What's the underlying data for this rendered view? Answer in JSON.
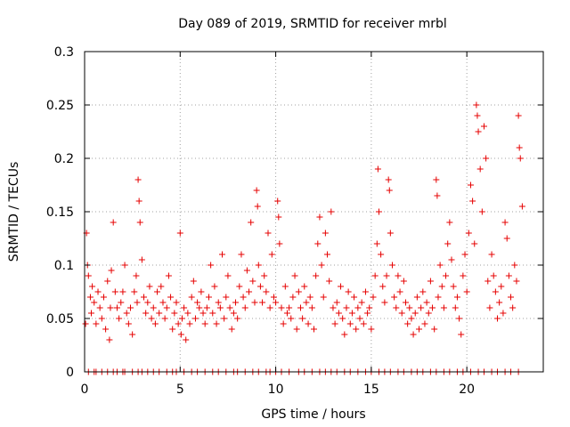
{
  "chart_data": {
    "type": "scatter",
    "title": "Day 089 of 2019, SRMTID for receiver mrbl",
    "xlabel": "GPS time / hours",
    "ylabel": "SRMTID / TECUs",
    "xlim": [
      0,
      24.0
    ],
    "ylim": [
      0,
      0.3
    ],
    "x_ticks": [
      0,
      5,
      10,
      15,
      20
    ],
    "x_tick_labels": [
      "0",
      "5",
      "10",
      "15",
      "20"
    ],
    "y_ticks": [
      0,
      0.05,
      0.1,
      0.15,
      0.2,
      0.25,
      0.3
    ],
    "y_tick_labels": [
      "0",
      "0.05",
      "0.1",
      "0.15",
      "0.2",
      "0.25",
      "0.3"
    ],
    "grid": true,
    "marker": "plus",
    "color": "#e60000",
    "series": [
      {
        "name": "SRMTID",
        "points": [
          [
            0.05,
            0.045
          ],
          [
            0.1,
            0.13
          ],
          [
            0.15,
            0.1
          ],
          [
            0.2,
            0.09
          ],
          [
            0.3,
            0.07
          ],
          [
            0.35,
            0.055
          ],
          [
            0.4,
            0.08
          ],
          [
            0.5,
            0.065
          ],
          [
            0.6,
            0.045
          ],
          [
            0.7,
            0.075
          ],
          [
            0.8,
            0.06
          ],
          [
            0.9,
            0.05
          ],
          [
            1.0,
            0.07
          ],
          [
            1.1,
            0.04
          ],
          [
            1.2,
            0.085
          ],
          [
            1.3,
            0.03
          ],
          [
            1.35,
            0.06
          ],
          [
            1.4,
            0.095
          ],
          [
            1.5,
            0.14
          ],
          [
            1.6,
            0.075
          ],
          [
            1.7,
            0.06
          ],
          [
            1.8,
            0.05
          ],
          [
            1.9,
            0.065
          ],
          [
            2.0,
            0.075
          ],
          [
            2.1,
            0.1
          ],
          [
            2.2,
            0.055
          ],
          [
            2.3,
            0.045
          ],
          [
            2.4,
            0.06
          ],
          [
            2.5,
            0.035
          ],
          [
            2.6,
            0.075
          ],
          [
            2.7,
            0.09
          ],
          [
            2.75,
            0.065
          ],
          [
            2.8,
            0.18
          ],
          [
            2.85,
            0.16
          ],
          [
            2.9,
            0.14
          ],
          [
            3.0,
            0.105
          ],
          [
            3.1,
            0.07
          ],
          [
            3.2,
            0.055
          ],
          [
            3.3,
            0.065
          ],
          [
            3.4,
            0.08
          ],
          [
            3.5,
            0.05
          ],
          [
            3.6,
            0.06
          ],
          [
            3.7,
            0.045
          ],
          [
            3.8,
            0.075
          ],
          [
            3.9,
            0.055
          ],
          [
            4.0,
            0.08
          ],
          [
            4.1,
            0.065
          ],
          [
            4.2,
            0.05
          ],
          [
            4.3,
            0.06
          ],
          [
            4.4,
            0.09
          ],
          [
            4.5,
            0.07
          ],
          [
            4.6,
            0.04
          ],
          [
            4.7,
            0.055
          ],
          [
            4.8,
            0.065
          ],
          [
            4.9,
            0.045
          ],
          [
            5.0,
            0.13
          ],
          [
            5.05,
            0.035
          ],
          [
            5.1,
            0.05
          ],
          [
            5.2,
            0.06
          ],
          [
            5.3,
            0.03
          ],
          [
            5.4,
            0.055
          ],
          [
            5.5,
            0.045
          ],
          [
            5.6,
            0.07
          ],
          [
            5.7,
            0.085
          ],
          [
            5.8,
            0.05
          ],
          [
            5.9,
            0.065
          ],
          [
            6.0,
            0.06
          ],
          [
            6.1,
            0.075
          ],
          [
            6.2,
            0.055
          ],
          [
            6.3,
            0.045
          ],
          [
            6.4,
            0.06
          ],
          [
            6.5,
            0.07
          ],
          [
            6.6,
            0.1
          ],
          [
            6.7,
            0.055
          ],
          [
            6.8,
            0.08
          ],
          [
            6.9,
            0.045
          ],
          [
            7.0,
            0.065
          ],
          [
            7.1,
            0.06
          ],
          [
            7.2,
            0.11
          ],
          [
            7.3,
            0.05
          ],
          [
            7.4,
            0.07
          ],
          [
            7.5,
            0.09
          ],
          [
            7.6,
            0.06
          ],
          [
            7.7,
            0.04
          ],
          [
            7.8,
            0.055
          ],
          [
            7.9,
            0.065
          ],
          [
            8.0,
            0.05
          ],
          [
            8.1,
            0.08
          ],
          [
            8.2,
            0.11
          ],
          [
            8.3,
            0.07
          ],
          [
            8.4,
            0.06
          ],
          [
            8.5,
            0.095
          ],
          [
            8.6,
            0.075
          ],
          [
            8.7,
            0.14
          ],
          [
            8.8,
            0.085
          ],
          [
            8.9,
            0.065
          ],
          [
            9.0,
            0.17
          ],
          [
            9.05,
            0.155
          ],
          [
            9.1,
            0.1
          ],
          [
            9.2,
            0.08
          ],
          [
            9.3,
            0.065
          ],
          [
            9.4,
            0.09
          ],
          [
            9.5,
            0.075
          ],
          [
            9.6,
            0.13
          ],
          [
            9.7,
            0.06
          ],
          [
            9.8,
            0.11
          ],
          [
            9.9,
            0.07
          ],
          [
            10.0,
            0.065
          ],
          [
            10.1,
            0.16
          ],
          [
            10.15,
            0.145
          ],
          [
            10.2,
            0.12
          ],
          [
            10.3,
            0.06
          ],
          [
            10.4,
            0.045
          ],
          [
            10.5,
            0.08
          ],
          [
            10.6,
            0.055
          ],
          [
            10.7,
            0.06
          ],
          [
            10.8,
            0.05
          ],
          [
            10.9,
            0.07
          ],
          [
            11.0,
            0.09
          ],
          [
            11.1,
            0.04
          ],
          [
            11.2,
            0.075
          ],
          [
            11.3,
            0.06
          ],
          [
            11.4,
            0.05
          ],
          [
            11.5,
            0.08
          ],
          [
            11.6,
            0.065
          ],
          [
            11.7,
            0.045
          ],
          [
            11.8,
            0.07
          ],
          [
            11.9,
            0.06
          ],
          [
            12.0,
            0.04
          ],
          [
            12.1,
            0.09
          ],
          [
            12.2,
            0.12
          ],
          [
            12.3,
            0.145
          ],
          [
            12.4,
            0.1
          ],
          [
            12.5,
            0.07
          ],
          [
            12.6,
            0.13
          ],
          [
            12.7,
            0.11
          ],
          [
            12.8,
            0.085
          ],
          [
            12.9,
            0.15
          ],
          [
            13.0,
            0.06
          ],
          [
            13.1,
            0.045
          ],
          [
            13.2,
            0.065
          ],
          [
            13.3,
            0.055
          ],
          [
            13.4,
            0.08
          ],
          [
            13.5,
            0.05
          ],
          [
            13.6,
            0.035
          ],
          [
            13.7,
            0.06
          ],
          [
            13.8,
            0.075
          ],
          [
            13.9,
            0.045
          ],
          [
            14.0,
            0.055
          ],
          [
            14.1,
            0.07
          ],
          [
            14.2,
            0.04
          ],
          [
            14.3,
            0.06
          ],
          [
            14.4,
            0.05
          ],
          [
            14.5,
            0.065
          ],
          [
            14.6,
            0.045
          ],
          [
            14.7,
            0.075
          ],
          [
            14.8,
            0.055
          ],
          [
            14.9,
            0.06
          ],
          [
            15.0,
            0.04
          ],
          [
            15.1,
            0.07
          ],
          [
            15.2,
            0.09
          ],
          [
            15.3,
            0.12
          ],
          [
            15.35,
            0.19
          ],
          [
            15.4,
            0.15
          ],
          [
            15.5,
            0.11
          ],
          [
            15.6,
            0.08
          ],
          [
            15.7,
            0.065
          ],
          [
            15.8,
            0.09
          ],
          [
            15.9,
            0.18
          ],
          [
            15.95,
            0.17
          ],
          [
            16.0,
            0.13
          ],
          [
            16.1,
            0.1
          ],
          [
            16.2,
            0.07
          ],
          [
            16.3,
            0.06
          ],
          [
            16.4,
            0.09
          ],
          [
            16.5,
            0.075
          ],
          [
            16.6,
            0.055
          ],
          [
            16.7,
            0.085
          ],
          [
            16.8,
            0.065
          ],
          [
            16.9,
            0.045
          ],
          [
            17.0,
            0.06
          ],
          [
            17.1,
            0.05
          ],
          [
            17.2,
            0.035
          ],
          [
            17.3,
            0.055
          ],
          [
            17.4,
            0.07
          ],
          [
            17.5,
            0.04
          ],
          [
            17.6,
            0.06
          ],
          [
            17.7,
            0.075
          ],
          [
            17.8,
            0.045
          ],
          [
            17.9,
            0.065
          ],
          [
            18.0,
            0.055
          ],
          [
            18.1,
            0.085
          ],
          [
            18.2,
            0.06
          ],
          [
            18.3,
            0.04
          ],
          [
            18.4,
            0.18
          ],
          [
            18.45,
            0.165
          ],
          [
            18.5,
            0.07
          ],
          [
            18.6,
            0.1
          ],
          [
            18.7,
            0.08
          ],
          [
            18.8,
            0.06
          ],
          [
            18.9,
            0.09
          ],
          [
            19.0,
            0.12
          ],
          [
            19.1,
            0.14
          ],
          [
            19.2,
            0.105
          ],
          [
            19.3,
            0.08
          ],
          [
            19.4,
            0.06
          ],
          [
            19.5,
            0.07
          ],
          [
            19.6,
            0.05
          ],
          [
            19.7,
            0.035
          ],
          [
            19.8,
            0.09
          ],
          [
            19.9,
            0.11
          ],
          [
            20.0,
            0.075
          ],
          [
            20.1,
            0.13
          ],
          [
            20.2,
            0.175
          ],
          [
            20.3,
            0.16
          ],
          [
            20.4,
            0.12
          ],
          [
            20.5,
            0.25
          ],
          [
            20.55,
            0.24
          ],
          [
            20.6,
            0.225
          ],
          [
            20.7,
            0.19
          ],
          [
            20.8,
            0.15
          ],
          [
            20.9,
            0.23
          ],
          [
            21.0,
            0.2
          ],
          [
            21.1,
            0.085
          ],
          [
            21.2,
            0.06
          ],
          [
            21.3,
            0.11
          ],
          [
            21.4,
            0.09
          ],
          [
            21.5,
            0.075
          ],
          [
            21.6,
            0.05
          ],
          [
            21.7,
            0.065
          ],
          [
            21.8,
            0.08
          ],
          [
            21.9,
            0.055
          ],
          [
            22.0,
            0.14
          ],
          [
            22.1,
            0.125
          ],
          [
            22.2,
            0.09
          ],
          [
            22.3,
            0.07
          ],
          [
            22.4,
            0.06
          ],
          [
            22.5,
            0.1
          ],
          [
            22.6,
            0.085
          ],
          [
            22.7,
            0.24
          ],
          [
            22.75,
            0.21
          ],
          [
            22.8,
            0.2
          ],
          [
            22.9,
            0.155
          ]
        ]
      },
      {
        "name": "zero-level",
        "points": [
          [
            0.2,
            0
          ],
          [
            0.5,
            0
          ],
          [
            0.6,
            0
          ],
          [
            0.9,
            0
          ],
          [
            1.2,
            0
          ],
          [
            1.5,
            0
          ],
          [
            1.7,
            0
          ],
          [
            2.0,
            0
          ],
          [
            2.1,
            0
          ],
          [
            2.5,
            0
          ],
          [
            2.8,
            0
          ],
          [
            3.0,
            0
          ],
          [
            3.3,
            0
          ],
          [
            3.6,
            0
          ],
          [
            3.9,
            0
          ],
          [
            4.3,
            0
          ],
          [
            4.6,
            0
          ],
          [
            4.8,
            0
          ],
          [
            5.2,
            0
          ],
          [
            5.6,
            0
          ],
          [
            5.9,
            0
          ],
          [
            6.3,
            0
          ],
          [
            6.7,
            0
          ],
          [
            7.0,
            0
          ],
          [
            7.4,
            0
          ],
          [
            7.8,
            0
          ],
          [
            8.0,
            0
          ],
          [
            8.4,
            0
          ],
          [
            8.8,
            0
          ],
          [
            9.1,
            0
          ],
          [
            9.5,
            0
          ],
          [
            9.7,
            0
          ],
          [
            10.0,
            0
          ],
          [
            10.3,
            0
          ],
          [
            10.7,
            0
          ],
          [
            11.2,
            0
          ],
          [
            11.5,
            0
          ],
          [
            11.9,
            0
          ],
          [
            12.3,
            0
          ],
          [
            12.6,
            0
          ],
          [
            12.9,
            0
          ],
          [
            13.2,
            0
          ],
          [
            13.6,
            0
          ],
          [
            13.9,
            0
          ],
          [
            14.3,
            0
          ],
          [
            14.7,
            0
          ],
          [
            15.0,
            0
          ],
          [
            15.4,
            0
          ],
          [
            15.7,
            0
          ],
          [
            16.0,
            0
          ],
          [
            16.4,
            0
          ],
          [
            16.7,
            0
          ],
          [
            17.1,
            0
          ],
          [
            17.4,
            0
          ],
          [
            17.7,
            0
          ],
          [
            18.1,
            0
          ],
          [
            18.4,
            0
          ],
          [
            18.8,
            0
          ],
          [
            19.1,
            0
          ],
          [
            19.5,
            0
          ],
          [
            19.8,
            0
          ],
          [
            20.2,
            0
          ],
          [
            20.6,
            0
          ],
          [
            20.9,
            0
          ],
          [
            21.3,
            0
          ],
          [
            21.6,
            0
          ],
          [
            22.0,
            0
          ],
          [
            22.3,
            0
          ],
          [
            22.7,
            0
          ]
        ]
      }
    ]
  }
}
